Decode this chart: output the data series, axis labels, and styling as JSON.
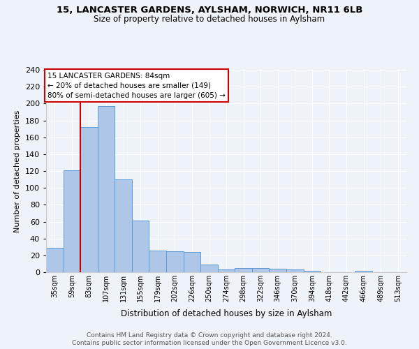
{
  "title1": "15, LANCASTER GARDENS, AYLSHAM, NORWICH, NR11 6LB",
  "title2": "Size of property relative to detached houses in Aylsham",
  "xlabel": "Distribution of detached houses by size in Aylsham",
  "ylabel": "Number of detached properties",
  "footer1": "Contains HM Land Registry data © Crown copyright and database right 2024.",
  "footer2": "Contains public sector information licensed under the Open Government Licence v3.0.",
  "bin_labels": [
    "35sqm",
    "59sqm",
    "83sqm",
    "107sqm",
    "131sqm",
    "155sqm",
    "179sqm",
    "202sqm",
    "226sqm",
    "250sqm",
    "274sqm",
    "298sqm",
    "322sqm",
    "346sqm",
    "370sqm",
    "394sqm",
    "418sqm",
    "442sqm",
    "466sqm",
    "489sqm",
    "513sqm"
  ],
  "bar_values": [
    29,
    121,
    172,
    197,
    110,
    61,
    26,
    25,
    24,
    9,
    3,
    5,
    5,
    4,
    3,
    2,
    0,
    0,
    2,
    0,
    0
  ],
  "bar_color": "#aec6e8",
  "bar_edge_color": "#5b9bd5",
  "vline_x": 1.5,
  "vline_color": "#cc0000",
  "annotation_text_line1": "15 LANCASTER GARDENS: 84sqm",
  "annotation_text_line2": "← 20% of detached houses are smaller (149)",
  "annotation_text_line3": "80% of semi-detached houses are larger (605) →",
  "annotation_box_color": "#ffffff",
  "annotation_box_edge_color": "#cc0000",
  "background_color": "#eef2f9",
  "ylim": [
    0,
    240
  ],
  "yticks": [
    0,
    20,
    40,
    60,
    80,
    100,
    120,
    140,
    160,
    180,
    200,
    220,
    240
  ]
}
